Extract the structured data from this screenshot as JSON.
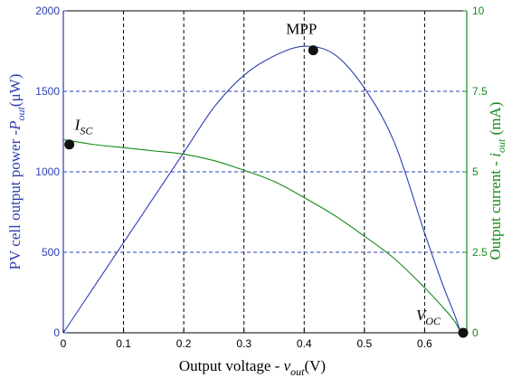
{
  "chart_data": {
    "type": "line",
    "title": "",
    "x": [
      0,
      0.05,
      0.1,
      0.15,
      0.2,
      0.25,
      0.3,
      0.35,
      0.4,
      0.45,
      0.5,
      0.55,
      0.6,
      0.63,
      0.65,
      0.66
    ],
    "xlabel": "Output voltage - v_out(V)",
    "xlabel_parts": [
      "Output voltage - ",
      "v",
      "out",
      "(V)"
    ],
    "xlim": [
      0,
      0.67
    ],
    "xticks": [
      0,
      0.1,
      0.2,
      0.3,
      0.4,
      0.5,
      0.6
    ],
    "grid": true,
    "left_axis": {
      "label": "PV cell output power -P_out(μW)",
      "label_parts": [
        "PV cell output power -",
        "P",
        "out",
        "(μW)"
      ],
      "ylim": [
        0,
        2000
      ],
      "ticks": [
        0,
        500,
        1000,
        1500,
        2000
      ],
      "color": "#2a3fb0"
    },
    "right_axis": {
      "label": "Output current - i_out (mA)",
      "label_parts": [
        "Output current - ",
        "i",
        "out",
        " (mA)"
      ],
      "ylim": [
        0,
        10
      ],
      "ticks": [
        0,
        2.5,
        5,
        7.5,
        10
      ],
      "color": "#138a1a"
    },
    "series": [
      {
        "axis": "left",
        "color": "#2a3fb0",
        "values": [
          0,
          280,
          560,
          840,
          1120,
          1400,
          1600,
          1720,
          1780,
          1730,
          1520,
          1180,
          620,
          300,
          110,
          0
        ]
      },
      {
        "axis": "right",
        "color": "#138a1a",
        "values": [
          6.0,
          5.85,
          5.75,
          5.65,
          5.55,
          5.35,
          5.05,
          4.7,
          4.2,
          3.65,
          3.0,
          2.3,
          1.4,
          0.8,
          0.35,
          0
        ]
      }
    ],
    "markers": [
      {
        "name": "MPP",
        "x": 0.415,
        "axis": "left",
        "y": 1755
      },
      {
        "name": "I_SC",
        "x": 0.01,
        "axis": "left",
        "y": 1170
      },
      {
        "name": "V_OC",
        "x": 0.664,
        "axis": "left",
        "y": 0
      }
    ],
    "annotations": [
      {
        "text": "MPP",
        "parts": [
          "MPP",
          ""
        ]
      },
      {
        "text": "I_SC",
        "parts": [
          "I",
          "SC"
        ]
      },
      {
        "text": "V_OC",
        "parts": [
          "V",
          "OC"
        ]
      }
    ]
  }
}
